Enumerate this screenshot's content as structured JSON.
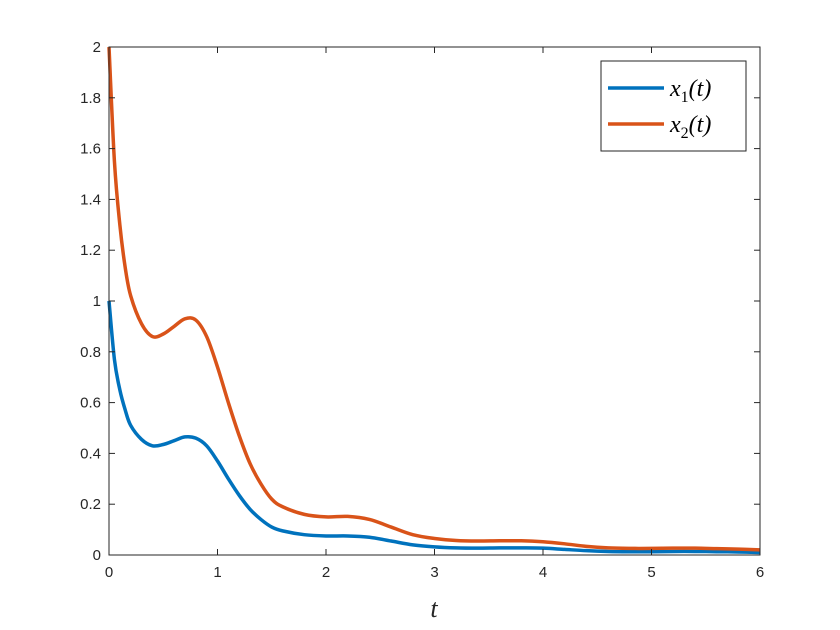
{
  "chart_data": {
    "type": "line",
    "title": "",
    "xlabel": "t",
    "ylabel": "",
    "xlim": [
      0,
      6
    ],
    "ylim": [
      0,
      2
    ],
    "xticks": [
      "0",
      "1",
      "2",
      "3",
      "4",
      "5",
      "6"
    ],
    "yticks": [
      "0",
      "0.2",
      "0.4",
      "0.6",
      "0.8",
      "1",
      "1.2",
      "1.4",
      "1.6",
      "1.8",
      "2"
    ],
    "grid": false,
    "legend_position": "top-right",
    "series": [
      {
        "name": "x1(t)",
        "legend_base": "x",
        "legend_sub": "1",
        "legend_tail": "(t)",
        "color": "#0072BD",
        "x": [
          0,
          0.05,
          0.1,
          0.15,
          0.2,
          0.3,
          0.4,
          0.5,
          0.6,
          0.7,
          0.8,
          0.9,
          1.0,
          1.1,
          1.2,
          1.3,
          1.4,
          1.5,
          1.6,
          1.8,
          2.0,
          2.2,
          2.4,
          2.6,
          2.8,
          3.0,
          3.2,
          3.4,
          3.6,
          3.8,
          4.0,
          4.2,
          4.4,
          4.6,
          4.8,
          5.0,
          5.2,
          5.4,
          5.6,
          5.8,
          6.0
        ],
        "y": [
          1.0,
          0.77,
          0.65,
          0.57,
          0.51,
          0.455,
          0.43,
          0.435,
          0.45,
          0.465,
          0.46,
          0.43,
          0.37,
          0.3,
          0.235,
          0.18,
          0.14,
          0.11,
          0.095,
          0.08,
          0.075,
          0.075,
          0.07,
          0.055,
          0.04,
          0.032,
          0.028,
          0.027,
          0.028,
          0.028,
          0.027,
          0.022,
          0.017,
          0.014,
          0.013,
          0.013,
          0.014,
          0.014,
          0.013,
          0.012,
          0.01
        ]
      },
      {
        "name": "x2(t)",
        "legend_base": "x",
        "legend_sub": "2",
        "legend_tail": "(t)",
        "color": "#D95319",
        "x": [
          0,
          0.05,
          0.1,
          0.15,
          0.2,
          0.3,
          0.4,
          0.5,
          0.6,
          0.7,
          0.8,
          0.9,
          1.0,
          1.1,
          1.2,
          1.3,
          1.4,
          1.5,
          1.6,
          1.8,
          2.0,
          2.2,
          2.4,
          2.6,
          2.8,
          3.0,
          3.2,
          3.4,
          3.6,
          3.8,
          4.0,
          4.2,
          4.4,
          4.6,
          4.8,
          5.0,
          5.2,
          5.4,
          5.6,
          5.8,
          6.0
        ],
        "y": [
          2.0,
          1.55,
          1.3,
          1.13,
          1.02,
          0.91,
          0.86,
          0.87,
          0.9,
          0.93,
          0.925,
          0.86,
          0.74,
          0.6,
          0.47,
          0.36,
          0.28,
          0.22,
          0.19,
          0.16,
          0.15,
          0.152,
          0.14,
          0.11,
          0.08,
          0.065,
          0.057,
          0.055,
          0.056,
          0.056,
          0.052,
          0.044,
          0.034,
          0.028,
          0.026,
          0.026,
          0.027,
          0.027,
          0.025,
          0.023,
          0.02
        ]
      }
    ]
  }
}
